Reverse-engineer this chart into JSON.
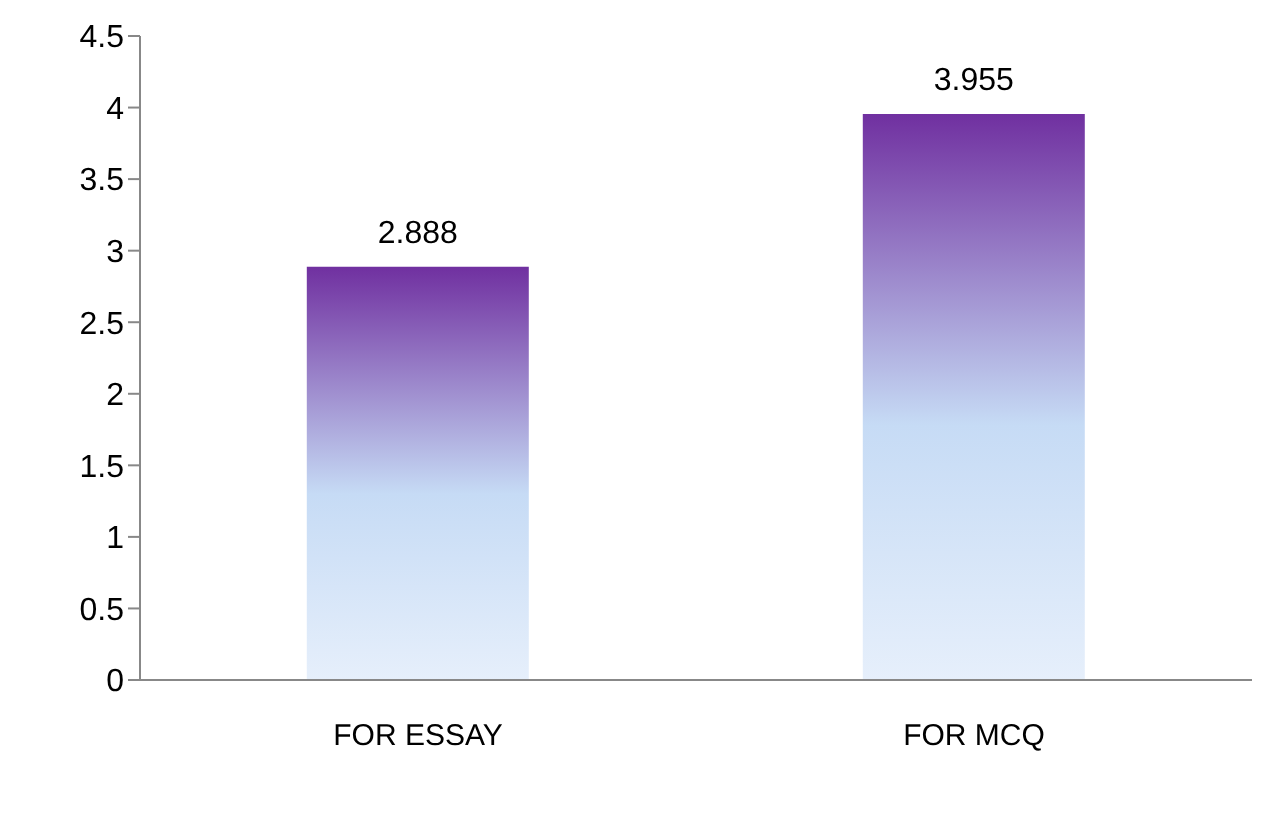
{
  "chart_data": {
    "type": "bar",
    "categories": [
      "FOR ESSAY",
      "FOR MCQ"
    ],
    "values": [
      2.888,
      3.955
    ],
    "color": "#7030a0",
    "ylim": [
      0,
      4.5
    ],
    "yticks": [
      0,
      0.5,
      1,
      1.5,
      2,
      2.5,
      3,
      3.5,
      4,
      4.5
    ],
    "data_labels": true,
    "grid": false
  }
}
